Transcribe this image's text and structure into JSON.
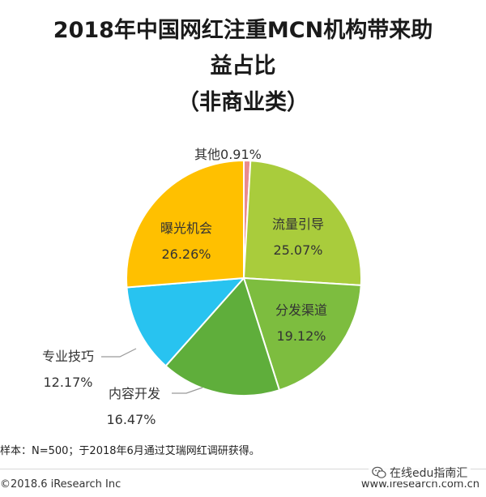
{
  "title": {
    "line1": "2018年中国网红注重MCN机构带来助",
    "line2": "益占比",
    "line3": "（非商业类）"
  },
  "chart_data": {
    "type": "pie",
    "title": "2018年中国网红注重MCN机构带来助益占比（非商业类）",
    "slices": [
      {
        "label": "其他",
        "value": 0.91,
        "display": "0.91%",
        "color": "#e98b8f"
      },
      {
        "label": "流量引导",
        "value": 25.07,
        "display": "25.07%",
        "color": "#a9cc3c"
      },
      {
        "label": "分发渠道",
        "value": 19.12,
        "display": "19.12%",
        "color": "#7dbd3f"
      },
      {
        "label": "内容开发",
        "value": 16.47,
        "display": "16.47%",
        "color": "#5fae3b"
      },
      {
        "label": "专业技巧",
        "value": 12.17,
        "display": "12.17%",
        "color": "#28c3f0"
      },
      {
        "label": "曝光机会",
        "value": 26.26,
        "display": "26.26%",
        "color": "#ffc000"
      }
    ]
  },
  "footer": {
    "note": "样本：N=500；于2018年6月通过艾瑞网红调研获得。",
    "copyright": "©2018.6 iResearch Inc",
    "site": "www.iresearch.com.cn",
    "watermark": "在线edu指南汇",
    "watermark_icon": "wechat-icon"
  }
}
